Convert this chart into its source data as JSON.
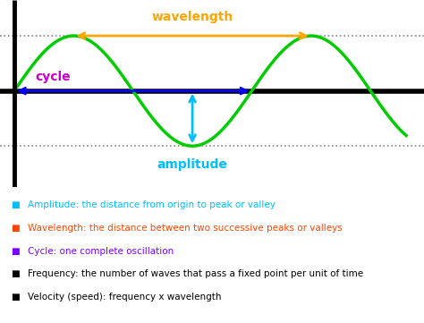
{
  "wave_color": "#00cc00",
  "baseline_color": "#000000",
  "dotted_color": "#888888",
  "wavelength_arrow_color": "#FFA500",
  "cycle_arrow_color": "#0000FF",
  "amplitude_arrow_color": "#00BFFF",
  "axis_color": "#000000",
  "wavelength_label": "wavelength",
  "cycle_label": "cycle",
  "amplitude_label": "amplitude",
  "wavelength_label_color": "#FFA500",
  "cycle_label_color": "#CC00CC",
  "amplitude_label_color": "#00BFFF",
  "bullet_color_1": "#00BFFF",
  "bullet_color_2": "#FF4500",
  "bullet_color_3": "#7B00FF",
  "bullet_color_4": "#000000",
  "bullet_color_5": "#000000",
  "text_1": "Amplitude: the distance from origin to peak or valley",
  "text_2": "Wavelength: the distance between two successive peaks or valleys",
  "text_3": "Cycle: one complete oscillation",
  "text_4": "Frequency: the number of waves that pass a fixed point per unit of time",
  "text_5": "Velocity (speed): frequency x wavelength",
  "wave_linewidth": 2.5,
  "baseline_linewidth": 4.0,
  "dotted_linewidth": 1.2,
  "axis_linewidth": 3.5,
  "arrow_linewidth": 2.0,
  "wavelength_fontsize": 10,
  "cycle_fontsize": 10,
  "amplitude_fontsize": 10,
  "text_fontsize": 7.5,
  "bullet_fontsize": 7.5
}
